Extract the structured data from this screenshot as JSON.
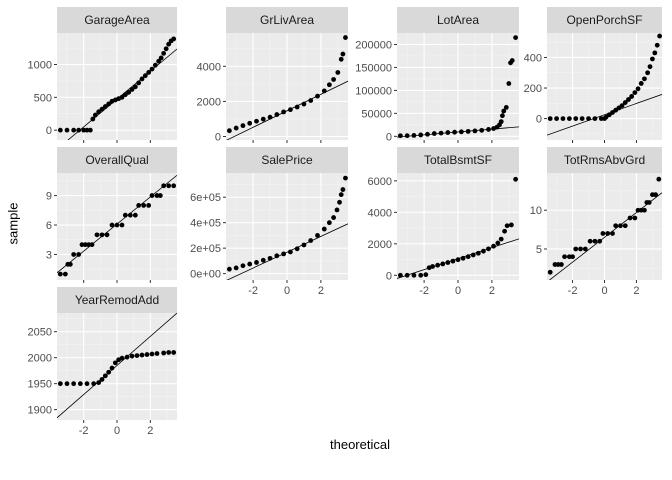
{
  "figure": {
    "xlabel": "theoretical",
    "ylabel": "sample",
    "colors": {
      "panel_bg": "#ebebeb",
      "strip_bg": "#d9d9d9",
      "grid_major": "#ffffff",
      "grid_minor": "#f4f4f4",
      "point": "#000000",
      "line": "#000000",
      "tick_text": "#4d4d4d",
      "strip_text": "#1a1a1a"
    }
  },
  "chart_data": [
    {
      "type": "scatter",
      "title": "GarageArea",
      "xlim": [
        -3.6,
        3.6
      ],
      "ylim": [
        -150,
        1480
      ],
      "xticks": [],
      "yticks": [
        0,
        500,
        1000
      ],
      "ytick_labels": [
        "0",
        "500",
        "1000"
      ],
      "qq_points": [
        [
          -3.4,
          0
        ],
        [
          -3.0,
          0
        ],
        [
          -2.6,
          0
        ],
        [
          -2.3,
          0
        ],
        [
          -2.0,
          0
        ],
        [
          -1.8,
          0
        ],
        [
          -1.6,
          0
        ],
        [
          -1.45,
          170
        ],
        [
          -1.3,
          230
        ],
        [
          -1.1,
          280
        ],
        [
          -0.9,
          320
        ],
        [
          -0.7,
          360
        ],
        [
          -0.5,
          400
        ],
        [
          -0.3,
          440
        ],
        [
          -0.1,
          460
        ],
        [
          0.1,
          480
        ],
        [
          0.3,
          500
        ],
        [
          0.5,
          540
        ],
        [
          0.7,
          576
        ],
        [
          0.9,
          620
        ],
        [
          1.1,
          660
        ],
        [
          1.3,
          720
        ],
        [
          1.5,
          780
        ],
        [
          1.7,
          830
        ],
        [
          1.9,
          880
        ],
        [
          2.1,
          930
        ],
        [
          2.3,
          990
        ],
        [
          2.5,
          1050
        ],
        [
          2.65,
          1100
        ],
        [
          2.8,
          1170
        ],
        [
          2.95,
          1240
        ],
        [
          3.1,
          1310
        ],
        [
          3.25,
          1360
        ],
        [
          3.4,
          1390
        ]
      ],
      "ref_line": {
        "intercept": 473,
        "slope": 212
      }
    },
    {
      "type": "scatter",
      "title": "GrLivArea",
      "xlim": [
        -3.6,
        3.6
      ],
      "ylim": [
        -200,
        5900
      ],
      "xticks": [],
      "yticks": [
        0,
        2000,
        4000
      ],
      "ytick_labels": [
        "0",
        "2000",
        "4000"
      ],
      "qq_points": [
        [
          -3.4,
          330
        ],
        [
          -3.0,
          480
        ],
        [
          -2.6,
          620
        ],
        [
          -2.2,
          750
        ],
        [
          -1.8,
          870
        ],
        [
          -1.4,
          990
        ],
        [
          -1.0,
          1100
        ],
        [
          -0.6,
          1250
        ],
        [
          -0.2,
          1400
        ],
        [
          0.2,
          1530
        ],
        [
          0.6,
          1680
        ],
        [
          1.0,
          1850
        ],
        [
          1.4,
          2050
        ],
        [
          1.8,
          2300
        ],
        [
          2.2,
          2600
        ],
        [
          2.5,
          2950
        ],
        [
          2.75,
          3250
        ],
        [
          3.0,
          3650
        ],
        [
          3.2,
          4400
        ],
        [
          3.3,
          4700
        ],
        [
          3.45,
          5640
        ]
      ],
      "ref_line": {
        "intercept": 1464,
        "slope": 470
      }
    },
    {
      "type": "scatter",
      "title": "LotArea",
      "xlim": [
        -3.6,
        3.6
      ],
      "ylim": [
        -8000,
        225000
      ],
      "xticks": [],
      "yticks": [
        0,
        50000,
        100000,
        150000,
        200000
      ],
      "ytick_labels": [
        "0",
        "50000",
        "100000",
        "150000",
        "200000"
      ],
      "qq_points": [
        [
          -3.4,
          1300
        ],
        [
          -3.0,
          1500
        ],
        [
          -2.6,
          2000
        ],
        [
          -2.2,
          3000
        ],
        [
          -1.8,
          4500
        ],
        [
          -1.4,
          6000
        ],
        [
          -1.0,
          7000
        ],
        [
          -0.6,
          8200
        ],
        [
          -0.2,
          9000
        ],
        [
          0.2,
          9800
        ],
        [
          0.6,
          10800
        ],
        [
          1.0,
          11800
        ],
        [
          1.4,
          13000
        ],
        [
          1.8,
          15000
        ],
        [
          2.1,
          17000
        ],
        [
          2.3,
          20000
        ],
        [
          2.45,
          25000
        ],
        [
          2.55,
          32000
        ],
        [
          2.62,
          45000
        ],
        [
          2.7,
          55000
        ],
        [
          2.85,
          63000
        ],
        [
          3.0,
          115000
        ],
        [
          3.1,
          160000
        ],
        [
          3.2,
          165000
        ],
        [
          3.4,
          215000
        ]
      ],
      "ref_line": {
        "intercept": 9480,
        "slope": 3100
      }
    },
    {
      "type": "scatter",
      "title": "OpenPorchSF",
      "xlim": [
        -3.6,
        3.6
      ],
      "ylim": [
        -140,
        560
      ],
      "xticks": [],
      "yticks": [
        0,
        200,
        400
      ],
      "ytick_labels": [
        "0",
        "200",
        "400"
      ],
      "qq_points": [
        [
          -3.4,
          0
        ],
        [
          -3.0,
          0
        ],
        [
          -2.6,
          0
        ],
        [
          -2.2,
          0
        ],
        [
          -1.8,
          0
        ],
        [
          -1.4,
          0
        ],
        [
          -1.0,
          0
        ],
        [
          -0.6,
          0
        ],
        [
          -0.2,
          0
        ],
        [
          0.0,
          0
        ],
        [
          0.1,
          10
        ],
        [
          0.3,
          25
        ],
        [
          0.5,
          40
        ],
        [
          0.7,
          55
        ],
        [
          0.9,
          70
        ],
        [
          1.1,
          85
        ],
        [
          1.3,
          105
        ],
        [
          1.5,
          125
        ],
        [
          1.7,
          145
        ],
        [
          1.9,
          170
        ],
        [
          2.1,
          195
        ],
        [
          2.3,
          230
        ],
        [
          2.5,
          260
        ],
        [
          2.7,
          300
        ],
        [
          2.85,
          340
        ],
        [
          3.0,
          390
        ],
        [
          3.15,
          430
        ],
        [
          3.3,
          480
        ],
        [
          3.45,
          540
        ]
      ],
      "ref_line": {
        "intercept": 25,
        "slope": 37
      }
    },
    {
      "type": "scatter",
      "title": "OverallQual",
      "xlim": [
        -3.6,
        3.6
      ],
      "ylim": [
        0.4,
        11.3
      ],
      "xticks": [],
      "yticks": [
        3,
        6,
        9
      ],
      "ytick_labels": [
        "3",
        "6",
        "9"
      ],
      "qq_points": [
        [
          -3.4,
          1
        ],
        [
          -3.1,
          1
        ],
        [
          -2.95,
          2
        ],
        [
          -2.8,
          2
        ],
        [
          -2.6,
          3
        ],
        [
          -2.3,
          3
        ],
        [
          -2.1,
          4
        ],
        [
          -1.9,
          4
        ],
        [
          -1.7,
          4
        ],
        [
          -1.5,
          4
        ],
        [
          -1.2,
          5
        ],
        [
          -0.9,
          5
        ],
        [
          -0.6,
          5
        ],
        [
          -0.3,
          6
        ],
        [
          0.0,
          6
        ],
        [
          0.3,
          6
        ],
        [
          0.5,
          7
        ],
        [
          0.8,
          7
        ],
        [
          1.1,
          7
        ],
        [
          1.3,
          8
        ],
        [
          1.6,
          8
        ],
        [
          1.9,
          8
        ],
        [
          2.1,
          9
        ],
        [
          2.4,
          9
        ],
        [
          2.6,
          9
        ],
        [
          2.8,
          10
        ],
        [
          3.1,
          10
        ],
        [
          3.4,
          10
        ]
      ],
      "ref_line": {
        "intercept": 6.1,
        "slope": 1.38
      }
    },
    {
      "type": "scatter",
      "title": "SalePrice",
      "xlim": [
        -3.6,
        3.6
      ],
      "ylim": [
        -50000,
        790000
      ],
      "xticks": [
        -2,
        0,
        2
      ],
      "xtick_labels": [
        "-2",
        "0",
        "2"
      ],
      "yticks": [
        0,
        200000,
        400000,
        600000
      ],
      "ytick_labels": [
        "0e+00",
        "2e+05",
        "4e+05",
        "6e+05"
      ],
      "qq_points": [
        [
          -3.4,
          35000
        ],
        [
          -3.0,
          45000
        ],
        [
          -2.6,
          62000
        ],
        [
          -2.2,
          75000
        ],
        [
          -1.8,
          88000
        ],
        [
          -1.4,
          105000
        ],
        [
          -1.0,
          120000
        ],
        [
          -0.6,
          140000
        ],
        [
          -0.2,
          155000
        ],
        [
          0.2,
          170000
        ],
        [
          0.6,
          195000
        ],
        [
          1.0,
          225000
        ],
        [
          1.4,
          260000
        ],
        [
          1.8,
          300000
        ],
        [
          2.2,
          350000
        ],
        [
          2.5,
          400000
        ],
        [
          2.75,
          440000
        ],
        [
          2.95,
          500000
        ],
        [
          3.1,
          560000
        ],
        [
          3.2,
          620000
        ],
        [
          3.3,
          660000
        ],
        [
          3.45,
          750000
        ]
      ],
      "ref_line": {
        "intercept": 168000,
        "slope": 62000
      }
    },
    {
      "type": "scatter",
      "title": "TotalBsmtSF",
      "xlim": [
        -3.6,
        3.6
      ],
      "ylim": [
        -300,
        6500
      ],
      "xticks": [
        -2,
        0,
        2
      ],
      "xtick_labels": [
        "-2",
        "0",
        "2"
      ],
      "yticks": [
        0,
        2000,
        4000,
        6000
      ],
      "ytick_labels": [
        "0",
        "2000",
        "4000",
        "6000"
      ],
      "qq_points": [
        [
          -3.4,
          0
        ],
        [
          -3.0,
          0
        ],
        [
          -2.6,
          0
        ],
        [
          -2.2,
          0
        ],
        [
          -1.9,
          40
        ],
        [
          -1.7,
          480
        ],
        [
          -1.5,
          560
        ],
        [
          -1.2,
          640
        ],
        [
          -0.9,
          720
        ],
        [
          -0.6,
          810
        ],
        [
          -0.3,
          900
        ],
        [
          0.0,
          990
        ],
        [
          0.3,
          1080
        ],
        [
          0.6,
          1180
        ],
        [
          0.9,
          1290
        ],
        [
          1.2,
          1400
        ],
        [
          1.5,
          1530
        ],
        [
          1.8,
          1680
        ],
        [
          2.1,
          1850
        ],
        [
          2.35,
          2050
        ],
        [
          2.55,
          2300
        ],
        [
          2.75,
          2800
        ],
        [
          2.9,
          3150
        ],
        [
          3.15,
          3200
        ],
        [
          3.4,
          6100
        ]
      ],
      "ref_line": {
        "intercept": 1057,
        "slope": 350
      }
    },
    {
      "type": "scatter",
      "title": "TotRmsAbvGrd",
      "xlim": [
        -3.6,
        3.6
      ],
      "ylim": [
        1.0,
        14.8
      ],
      "xticks": [
        -2,
        0,
        2
      ],
      "xtick_labels": [
        "-2",
        "0",
        "2"
      ],
      "yticks": [
        5,
        10
      ],
      "ytick_labels": [
        "5",
        "10"
      ],
      "qq_points": [
        [
          -3.4,
          2
        ],
        [
          -3.1,
          3
        ],
        [
          -2.9,
          3
        ],
        [
          -2.7,
          3
        ],
        [
          -2.5,
          4
        ],
        [
          -2.2,
          4
        ],
        [
          -2.0,
          4
        ],
        [
          -1.8,
          5
        ],
        [
          -1.5,
          5
        ],
        [
          -1.2,
          5
        ],
        [
          -0.9,
          6
        ],
        [
          -0.6,
          6
        ],
        [
          -0.3,
          6
        ],
        [
          -0.1,
          7
        ],
        [
          0.2,
          7
        ],
        [
          0.5,
          7
        ],
        [
          0.7,
          8
        ],
        [
          1.0,
          8
        ],
        [
          1.3,
          8
        ],
        [
          1.6,
          9
        ],
        [
          1.9,
          9
        ],
        [
          2.1,
          10
        ],
        [
          2.3,
          10
        ],
        [
          2.5,
          10
        ],
        [
          2.65,
          11
        ],
        [
          2.8,
          11
        ],
        [
          3.0,
          12
        ],
        [
          3.2,
          12
        ],
        [
          3.4,
          14
        ]
      ],
      "ref_line": {
        "intercept": 6.5,
        "slope": 1.6
      }
    },
    {
      "type": "scatter",
      "title": "YearRemodAdd",
      "xlim": [
        -3.6,
        3.6
      ],
      "ylim": [
        1880,
        2086
      ],
      "xticks": [
        -2,
        0,
        2
      ],
      "xtick_labels": [
        "-2",
        "0",
        "2"
      ],
      "yticks": [
        1900,
        1950,
        2000,
        2050
      ],
      "ytick_labels": [
        "1900",
        "1950",
        "2000",
        "2050"
      ],
      "qq_points": [
        [
          -3.4,
          1950
        ],
        [
          -3.0,
          1950
        ],
        [
          -2.6,
          1950
        ],
        [
          -2.2,
          1950
        ],
        [
          -1.8,
          1950
        ],
        [
          -1.4,
          1950
        ],
        [
          -1.1,
          1952
        ],
        [
          -0.9,
          1958
        ],
        [
          -0.7,
          1965
        ],
        [
          -0.5,
          1972
        ],
        [
          -0.3,
          1980
        ],
        [
          -0.1,
          1990
        ],
        [
          0.1,
          1996
        ],
        [
          0.3,
          1999
        ],
        [
          0.6,
          2001
        ],
        [
          0.9,
          2003
        ],
        [
          1.2,
          2004
        ],
        [
          1.5,
          2005
        ],
        [
          1.8,
          2006
        ],
        [
          2.1,
          2007
        ],
        [
          2.4,
          2008
        ],
        [
          2.8,
          2009
        ],
        [
          3.1,
          2010
        ],
        [
          3.4,
          2010
        ]
      ],
      "ref_line": {
        "intercept": 1985,
        "slope": 28
      }
    }
  ]
}
